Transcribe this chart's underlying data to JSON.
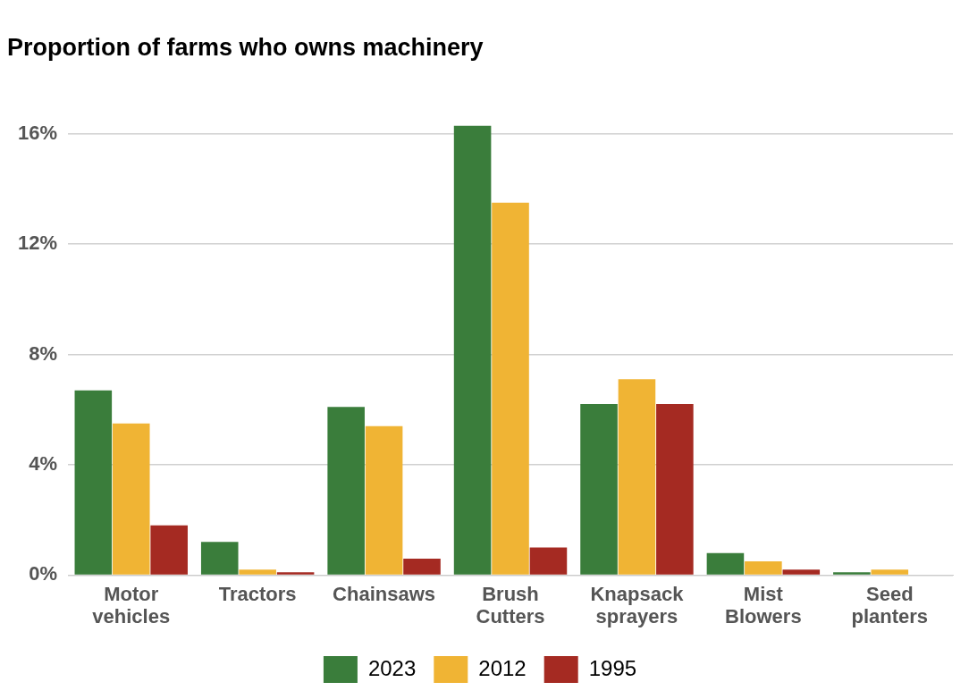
{
  "chart_data": {
    "type": "bar",
    "title": "Proportion of farms who owns machinery",
    "categories": [
      "Motor\nvehicles",
      "Tractors",
      "Chainsaws",
      "Brush\nCutters",
      "Knapsack\nsprayers",
      "Mist\nBlowers",
      "Seed\nplanters"
    ],
    "series": [
      {
        "name": "2023",
        "color": "#3a7d3b",
        "values": [
          6.7,
          1.2,
          6.1,
          16.3,
          6.2,
          0.8,
          0.1
        ]
      },
      {
        "name": "2012",
        "color": "#f0b434",
        "values": [
          5.5,
          0.2,
          5.4,
          13.5,
          7.1,
          0.5,
          0.2
        ]
      },
      {
        "name": "1995",
        "color": "#a52a22",
        "values": [
          1.8,
          0.1,
          0.6,
          1.0,
          6.2,
          0.2,
          null
        ]
      }
    ],
    "ylim": [
      0,
      16.3
    ],
    "yticks": [
      {
        "value": 0,
        "label": "0%"
      },
      {
        "value": 4,
        "label": "4%"
      },
      {
        "value": 8,
        "label": "8%"
      },
      {
        "value": 12,
        "label": "12%"
      },
      {
        "value": 16,
        "label": "16%"
      }
    ],
    "grid": "y",
    "legend": "bottom"
  }
}
